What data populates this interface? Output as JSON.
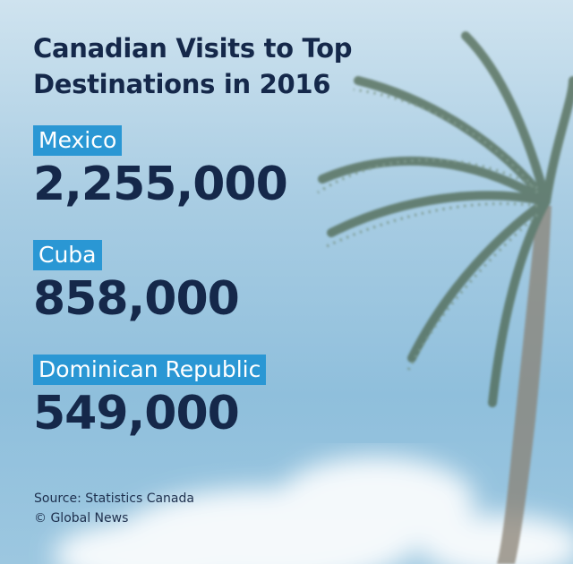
{
  "title": "Canadian Visits to Top Destinations in 2016",
  "items": [
    {
      "label": "Mexico",
      "value": "2,255,000"
    },
    {
      "label": "Cuba",
      "value": "858,000"
    },
    {
      "label": "Dominican Republic",
      "value": "549,000"
    }
  ],
  "source": "Source: Statistics Canada",
  "credit": "© Global News"
}
